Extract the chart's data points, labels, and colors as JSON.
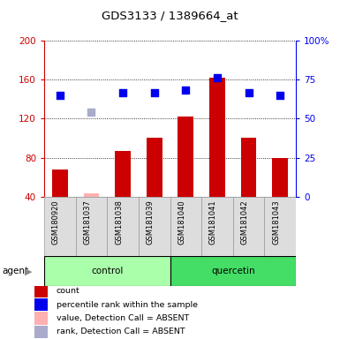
{
  "title": "GDS3133 / 1389664_at",
  "samples": [
    "GSM180920",
    "GSM181037",
    "GSM181038",
    "GSM181039",
    "GSM181040",
    "GSM181041",
    "GSM181042",
    "GSM181043"
  ],
  "bar_values": [
    68,
    43,
    87,
    100,
    122,
    162,
    100,
    80
  ],
  "bar_absent": [
    false,
    true,
    false,
    false,
    false,
    false,
    false,
    false
  ],
  "rank_values": [
    65,
    54,
    66.5,
    66.5,
    68.5,
    76.5,
    66.5,
    65
  ],
  "rank_absent": [
    false,
    true,
    false,
    false,
    false,
    false,
    false,
    false
  ],
  "ylim_left": [
    40,
    200
  ],
  "ylim_right": [
    0,
    100
  ],
  "yticks_left": [
    40,
    80,
    120,
    160,
    200
  ],
  "yticks_right": [
    0,
    25,
    50,
    75,
    100
  ],
  "ytick_labels_left": [
    "40",
    "80",
    "120",
    "160",
    "200"
  ],
  "ytick_labels_right": [
    "0",
    "25",
    "50",
    "75",
    "100%"
  ],
  "bar_color_present": "#CC0000",
  "bar_color_absent": "#FFB0B0",
  "rank_color_present": "#0000EE",
  "rank_color_absent": "#AAAACC",
  "group_colors_control": "#AAFFAA",
  "group_colors_quercetin": "#44DD66",
  "left_axis_color": "#CC0000",
  "right_axis_color": "#0000EE",
  "bg_color": "#DDDDDD",
  "plot_bg": "#FFFFFF",
  "bar_width": 0.5,
  "marker_size": 7,
  "legend_items": [
    {
      "color": "#CC0000",
      "label": "count"
    },
    {
      "color": "#0000EE",
      "label": "percentile rank within the sample"
    },
    {
      "color": "#FFB0B0",
      "label": "value, Detection Call = ABSENT"
    },
    {
      "color": "#AAAACC",
      "label": "rank, Detection Call = ABSENT"
    }
  ]
}
